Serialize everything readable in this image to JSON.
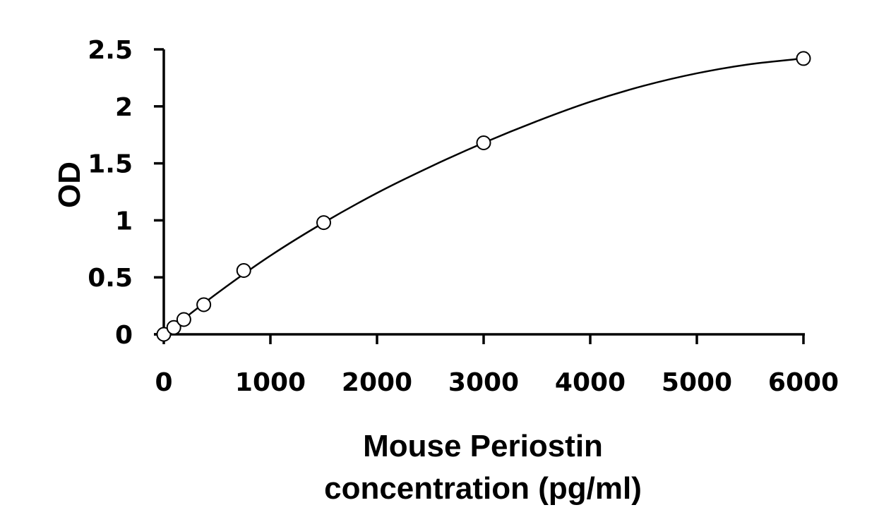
{
  "chart_data": {
    "type": "scatter",
    "title": "",
    "xlabel": [
      "Mouse Periostin",
      "concentration (pg/ml)"
    ],
    "ylabel": "OD",
    "xlim": [
      0,
      6000
    ],
    "ylim": [
      0,
      2.5
    ],
    "x_ticks": [
      0,
      1000,
      2000,
      3000,
      4000,
      5000,
      6000
    ],
    "y_ticks": [
      0,
      0.5,
      1,
      1.5,
      2,
      2.5
    ],
    "x_tick_labels": [
      "0",
      "1000",
      "2000",
      "3000",
      "4000",
      "5000",
      "6000"
    ],
    "y_tick_labels": [
      "0",
      "0.5",
      "1",
      "1.5",
      "2",
      "2.5"
    ],
    "grid": false,
    "legend": "none",
    "series": [
      {
        "marker": "open-circle",
        "x": [
          0,
          94,
          188,
          375,
          750,
          1500,
          3000,
          6000
        ],
        "y": [
          0.0,
          0.06,
          0.13,
          0.26,
          0.56,
          0.98,
          1.68,
          2.42
        ]
      }
    ],
    "fit": {
      "type": "polynomial",
      "x": [
        0,
        500,
        1000,
        1500,
        2000,
        2500,
        3000,
        3500,
        4000,
        4500,
        5000,
        5500,
        6000
      ],
      "y": [
        0.0,
        0.36,
        0.69,
        0.98,
        1.24,
        1.47,
        1.68,
        1.87,
        2.04,
        2.18,
        2.29,
        2.37,
        2.42
      ]
    },
    "colors": {
      "ink": "#000000",
      "background": "#ffffff",
      "marker_fill": "#ffffff"
    }
  }
}
